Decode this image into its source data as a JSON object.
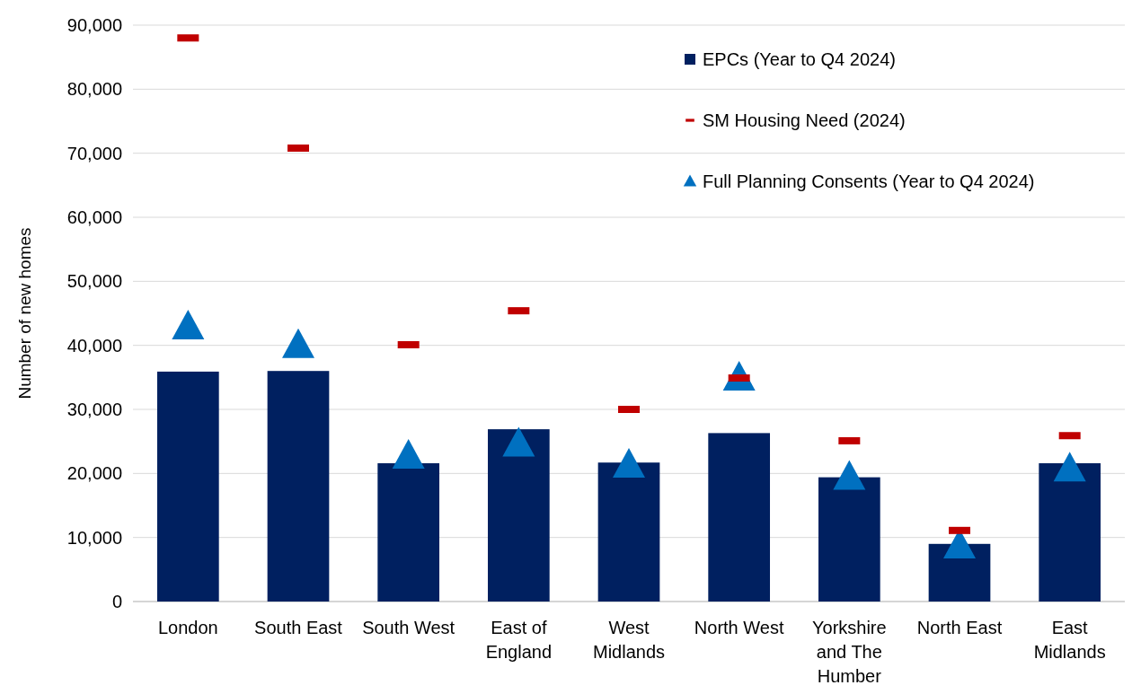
{
  "chart_data": {
    "type": "bar",
    "ylabel": "Number of new homes",
    "categories": [
      "London",
      "South East",
      "South West",
      "East of England",
      "West Midlands",
      "North West",
      "Yorkshire and The Humber",
      "North East",
      "East Midlands"
    ],
    "series": [
      {
        "name": "EPCs (Year to Q4 2024)",
        "type": "bar",
        "color": "#002060",
        "values": [
          35900,
          36000,
          21600,
          26900,
          21700,
          26300,
          19400,
          9000,
          21600
        ]
      },
      {
        "name": "SM Housing Need (2024)",
        "type": "scatter",
        "color": "#c00000",
        "values": [
          88000,
          70800,
          40100,
          45400,
          30000,
          34900,
          25100,
          11100,
          25900
        ]
      },
      {
        "name": "Full Planning Consents (Year to Q4 2024)",
        "type": "scatter",
        "marker": "triangle",
        "color": "#0070c0",
        "values": [
          42900,
          40000,
          22700,
          24600,
          21300,
          34900,
          19400,
          8700,
          20700
        ]
      }
    ],
    "ylim": [
      0,
      90000
    ],
    "yticks": [
      {
        "value": 0,
        "label": "0"
      },
      {
        "value": 10000,
        "label": "10,000"
      },
      {
        "value": 20000,
        "label": "20,000"
      },
      {
        "value": 30000,
        "label": "30,000"
      },
      {
        "value": 40000,
        "label": "40,000"
      },
      {
        "value": 50000,
        "label": "50,000"
      },
      {
        "value": 60000,
        "label": "60,000"
      },
      {
        "value": 70000,
        "label": "70,000"
      },
      {
        "value": 80000,
        "label": "80,000"
      },
      {
        "value": 90000,
        "label": "90,000"
      }
    ],
    "grid": "y",
    "legend": "top right"
  }
}
